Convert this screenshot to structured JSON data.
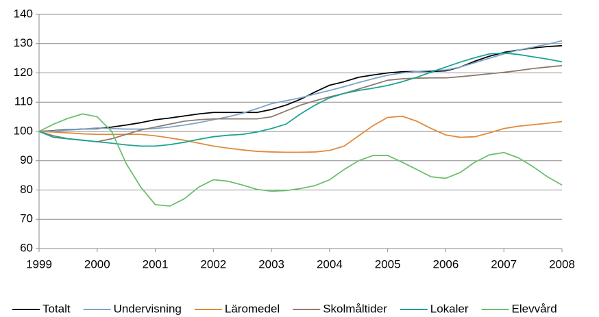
{
  "chart_data": {
    "type": "line",
    "x": [
      1999,
      1999.25,
      1999.5,
      1999.75,
      2000,
      2000.25,
      2000.5,
      2000.75,
      2001,
      2001.25,
      2001.5,
      2001.75,
      2002,
      2002.25,
      2002.5,
      2002.75,
      2003,
      2003.25,
      2003.5,
      2003.75,
      2004,
      2004.25,
      2004.5,
      2004.75,
      2005,
      2005.25,
      2005.5,
      2005.75,
      2006,
      2006.25,
      2006.5,
      2006.75,
      2007,
      2007.25,
      2007.5,
      2007.75,
      2008
    ],
    "xlim": [
      1999,
      2008
    ],
    "xticks": [
      1999,
      2000,
      2001,
      2002,
      2003,
      2004,
      2005,
      2006,
      2007,
      2008
    ],
    "ylim": [
      60,
      140
    ],
    "yticks": [
      60,
      70,
      80,
      90,
      100,
      110,
      120,
      130,
      140
    ],
    "grid": true,
    "legend": "bottom",
    "series": [
      {
        "name": "Totalt",
        "color": "#000000",
        "values": [
          100,
          100.3,
          100.6,
          100.8,
          101,
          101.5,
          102.2,
          103,
          104,
          104.6,
          105.3,
          106,
          106.5,
          106.5,
          106.5,
          106.5,
          107.5,
          109,
          111,
          113.5,
          115.8,
          117,
          118.5,
          119.3,
          120,
          120.4,
          120.5,
          120.5,
          120.7,
          122,
          124,
          125.7,
          127,
          127.8,
          128.5,
          129,
          129.3
        ]
      },
      {
        "name": "Undervisning",
        "color": "#7da3c9",
        "values": [
          100,
          100.2,
          100.5,
          100.8,
          101.2,
          101,
          100.8,
          100.8,
          101,
          101.5,
          102.2,
          103,
          104,
          105,
          106.2,
          107.8,
          109.5,
          110.5,
          111.5,
          112.8,
          114,
          115.3,
          116.7,
          118,
          119.2,
          120,
          120.5,
          120.8,
          121,
          122,
          123.5,
          125,
          126.5,
          127.8,
          128.8,
          129.8,
          131
        ]
      },
      {
        "name": "Läromedel",
        "color": "#e08a3c",
        "values": [
          100,
          99.8,
          99.5,
          99.2,
          99,
          99,
          99,
          99,
          98.5,
          97.8,
          97,
          96,
          95,
          94.3,
          93.7,
          93.2,
          93,
          92.9,
          92.9,
          93,
          93.5,
          95,
          98.5,
          102,
          104.8,
          105.2,
          103.5,
          101,
          98.8,
          98,
          98.2,
          99.5,
          101,
          101.8,
          102.3,
          102.8,
          103.4
        ]
      },
      {
        "name": "Skolmåltider",
        "color": "#8c7b6e",
        "values": [
          100,
          98.5,
          97.5,
          97,
          96.5,
          97.5,
          99,
          100.5,
          101.5,
          102.5,
          103.5,
          104,
          104.3,
          104.3,
          104.3,
          104.3,
          105,
          107,
          109,
          110.5,
          111.8,
          113,
          114.5,
          116,
          117.5,
          118,
          118.2,
          118.3,
          118.3,
          118.7,
          119.2,
          119.7,
          120.2,
          120.8,
          121.5,
          122,
          122.5
        ]
      },
      {
        "name": "Lokaler",
        "color": "#1aa391",
        "values": [
          100,
          98,
          97.5,
          97,
          96.5,
          96,
          95.4,
          95,
          95,
          95.5,
          96.3,
          97.3,
          98.2,
          98.7,
          99,
          99.8,
          101,
          102.5,
          106,
          109,
          111.5,
          113,
          114,
          114.8,
          115.7,
          117,
          118.5,
          120.3,
          122,
          123.7,
          125.2,
          126.5,
          126.8,
          126.3,
          125.5,
          124.7,
          123.8
        ]
      },
      {
        "name": "Elevvård",
        "color": "#6cbf6c",
        "values": [
          100,
          102.5,
          104.5,
          106,
          105,
          100,
          89,
          81,
          75,
          74.5,
          77,
          81,
          83.5,
          83,
          81.7,
          80.2,
          79.6,
          79.8,
          80.5,
          81.5,
          83.5,
          87,
          90,
          91.8,
          91.8,
          89.5,
          87,
          84.5,
          84,
          86,
          89.5,
          92,
          92.8,
          91,
          88,
          84.5,
          81.7
        ]
      }
    ]
  }
}
